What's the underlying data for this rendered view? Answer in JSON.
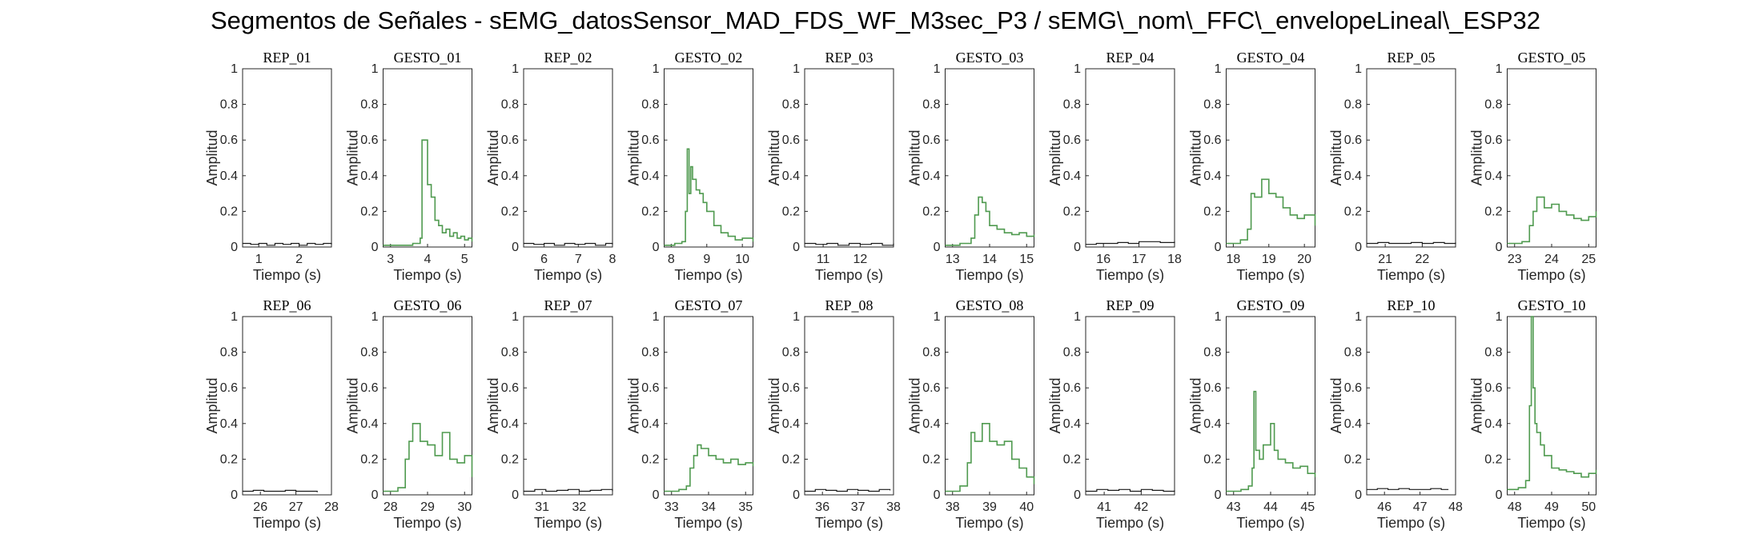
{
  "title": "Segmentos de Señales - sEMG_datosSensor_MAD_FDS_WF_M3sec_P3 / sEMG\\_nom\\_FFC\\_envelopeLineal\\_ESP32",
  "colors": {
    "rep": "#1a1a1a",
    "gesto": "#4f9a4f",
    "axis": "#262626"
  },
  "chart_data": [
    {
      "type": "line",
      "title": "REP_01",
      "xlabel": "Tiempo (s)",
      "ylabel": "Amplitud",
      "xlim": [
        0.6,
        2.8
      ],
      "ylim": [
        0,
        1
      ],
      "xticks": [
        1,
        2
      ],
      "yticks": [
        0,
        0.2,
        0.4,
        0.6,
        0.8,
        1
      ],
      "kind": "rep",
      "x": [
        0.6,
        0.8,
        1.0,
        1.2,
        1.4,
        1.6,
        1.8,
        2.0,
        2.2,
        2.4,
        2.6,
        2.8
      ],
      "y": [
        0.02,
        0.015,
        0.02,
        0.01,
        0.02,
        0.015,
        0.02,
        0.01,
        0.02,
        0.015,
        0.02,
        0.015
      ]
    },
    {
      "type": "line",
      "title": "GESTO_01",
      "xlabel": "Tiempo (s)",
      "ylabel": "Amplitud",
      "xlim": [
        2.8,
        5.2
      ],
      "ylim": [
        0,
        1
      ],
      "xticks": [
        3,
        4,
        5
      ],
      "yticks": [
        0,
        0.2,
        0.4,
        0.6,
        0.8,
        1
      ],
      "kind": "gesto",
      "x": [
        2.8,
        3.2,
        3.6,
        3.8,
        3.85,
        3.9,
        4.0,
        4.1,
        4.2,
        4.3,
        4.4,
        4.5,
        4.6,
        4.7,
        4.8,
        4.9,
        5.0,
        5.1,
        5.2
      ],
      "y": [
        0.01,
        0.01,
        0.02,
        0.05,
        0.6,
        0.6,
        0.35,
        0.28,
        0.15,
        0.12,
        0.08,
        0.1,
        0.06,
        0.08,
        0.05,
        0.06,
        0.04,
        0.05,
        0.03
      ]
    },
    {
      "type": "line",
      "title": "REP_02",
      "xlabel": "Tiempo (s)",
      "ylabel": "Amplitud",
      "xlim": [
        5.4,
        8.0
      ],
      "ylim": [
        0,
        1
      ],
      "xticks": [
        6,
        7,
        8
      ],
      "yticks": [
        0,
        0.2,
        0.4,
        0.6,
        0.8,
        1
      ],
      "kind": "rep",
      "x": [
        5.4,
        5.7,
        6.0,
        6.3,
        6.6,
        6.9,
        7.2,
        7.5,
        7.8,
        8.0
      ],
      "y": [
        0.02,
        0.015,
        0.02,
        0.01,
        0.02,
        0.015,
        0.02,
        0.01,
        0.02,
        0.015
      ]
    },
    {
      "type": "line",
      "title": "GESTO_02",
      "xlabel": "Tiempo (s)",
      "ylabel": "Amplitud",
      "xlim": [
        7.8,
        10.3
      ],
      "ylim": [
        0,
        1
      ],
      "xticks": [
        8,
        9,
        10
      ],
      "yticks": [
        0,
        0.2,
        0.4,
        0.6,
        0.8,
        1
      ],
      "kind": "gesto",
      "x": [
        7.8,
        8.1,
        8.3,
        8.4,
        8.45,
        8.5,
        8.55,
        8.6,
        8.7,
        8.8,
        8.9,
        9.0,
        9.2,
        9.4,
        9.6,
        9.8,
        10.0,
        10.3
      ],
      "y": [
        0.01,
        0.02,
        0.03,
        0.2,
        0.55,
        0.3,
        0.45,
        0.38,
        0.32,
        0.3,
        0.25,
        0.2,
        0.12,
        0.08,
        0.06,
        0.04,
        0.05,
        0.03
      ]
    },
    {
      "type": "line",
      "title": "REP_03",
      "xlabel": "Tiempo (s)",
      "ylabel": "Amplitud",
      "xlim": [
        10.5,
        12.9
      ],
      "ylim": [
        0,
        1
      ],
      "xticks": [
        11,
        12
      ],
      "yticks": [
        0,
        0.2,
        0.4,
        0.6,
        0.8,
        1
      ],
      "kind": "rep",
      "x": [
        10.5,
        10.8,
        11.1,
        11.4,
        11.7,
        12.0,
        12.3,
        12.6,
        12.9
      ],
      "y": [
        0.02,
        0.015,
        0.02,
        0.01,
        0.02,
        0.015,
        0.02,
        0.01,
        0.02
      ]
    },
    {
      "type": "line",
      "title": "GESTO_03",
      "xlabel": "Tiempo (s)",
      "ylabel": "Amplitud",
      "xlim": [
        12.8,
        15.2
      ],
      "ylim": [
        0,
        1
      ],
      "xticks": [
        13,
        14,
        15
      ],
      "yticks": [
        0,
        0.2,
        0.4,
        0.6,
        0.8,
        1
      ],
      "kind": "gesto",
      "x": [
        12.8,
        13.2,
        13.5,
        13.6,
        13.7,
        13.8,
        13.9,
        14.0,
        14.2,
        14.4,
        14.6,
        14.8,
        15.0,
        15.2
      ],
      "y": [
        0.01,
        0.02,
        0.05,
        0.18,
        0.28,
        0.25,
        0.2,
        0.12,
        0.1,
        0.08,
        0.07,
        0.08,
        0.06,
        0.07
      ]
    },
    {
      "type": "line",
      "title": "REP_04",
      "xlabel": "Tiempo (s)",
      "ylabel": "Amplitud",
      "xlim": [
        15.5,
        18.0
      ],
      "ylim": [
        0,
        1
      ],
      "xticks": [
        16,
        17,
        18
      ],
      "yticks": [
        0,
        0.2,
        0.4,
        0.6,
        0.8,
        1
      ],
      "kind": "rep",
      "x": [
        15.5,
        15.8,
        16.1,
        16.4,
        16.7,
        17.0,
        17.3,
        17.6,
        18.0
      ],
      "y": [
        0.015,
        0.02,
        0.02,
        0.025,
        0.02,
        0.03,
        0.03,
        0.025,
        0.03
      ]
    },
    {
      "type": "line",
      "title": "GESTO_04",
      "xlabel": "Tiempo (s)",
      "ylabel": "Amplitud",
      "xlim": [
        17.8,
        20.3
      ],
      "ylim": [
        0,
        1
      ],
      "xticks": [
        18,
        19,
        20
      ],
      "yticks": [
        0,
        0.2,
        0.4,
        0.6,
        0.8,
        1
      ],
      "kind": "gesto",
      "x": [
        17.8,
        18.2,
        18.4,
        18.5,
        18.6,
        18.8,
        19.0,
        19.2,
        19.4,
        19.6,
        19.8,
        20.0,
        20.3
      ],
      "y": [
        0.02,
        0.04,
        0.1,
        0.3,
        0.28,
        0.38,
        0.3,
        0.28,
        0.22,
        0.18,
        0.16,
        0.18,
        0.12
      ]
    },
    {
      "type": "line",
      "title": "REP_05",
      "xlabel": "Tiempo (s)",
      "ylabel": "Amplitud",
      "xlim": [
        20.5,
        22.9
      ],
      "ylim": [
        0,
        1
      ],
      "xticks": [
        21,
        22
      ],
      "yticks": [
        0,
        0.2,
        0.4,
        0.6,
        0.8,
        1
      ],
      "kind": "rep",
      "x": [
        20.5,
        20.8,
        21.1,
        21.4,
        21.7,
        22.0,
        22.3,
        22.6,
        22.9
      ],
      "y": [
        0.02,
        0.025,
        0.02,
        0.02,
        0.025,
        0.02,
        0.025,
        0.02,
        0.025
      ]
    },
    {
      "type": "line",
      "title": "GESTO_05",
      "xlabel": "Tiempo (s)",
      "ylabel": "Amplitud",
      "xlim": [
        22.8,
        25.2
      ],
      "ylim": [
        0,
        1
      ],
      "xticks": [
        23,
        24,
        25
      ],
      "yticks": [
        0,
        0.2,
        0.4,
        0.6,
        0.8,
        1
      ],
      "kind": "gesto",
      "x": [
        22.8,
        23.2,
        23.4,
        23.5,
        23.6,
        23.8,
        24.0,
        24.2,
        24.4,
        24.6,
        24.8,
        25.0,
        25.2
      ],
      "y": [
        0.02,
        0.03,
        0.12,
        0.2,
        0.28,
        0.22,
        0.24,
        0.2,
        0.18,
        0.16,
        0.15,
        0.17,
        0.2
      ]
    },
    {
      "type": "line",
      "title": "REP_06",
      "xlabel": "Tiempo (s)",
      "ylabel": "Amplitud",
      "xlim": [
        25.5,
        28.0
      ],
      "ylim": [
        0,
        1
      ],
      "xticks": [
        26,
        27,
        28
      ],
      "yticks": [
        0,
        0.2,
        0.4,
        0.6,
        0.8,
        1
      ],
      "kind": "rep",
      "x": [
        25.5,
        25.8,
        26.1,
        26.4,
        26.7,
        27.0,
        27.3,
        27.6
      ],
      "y": [
        0.02,
        0.025,
        0.02,
        0.02,
        0.025,
        0.02,
        0.02,
        0.015
      ]
    },
    {
      "type": "line",
      "title": "GESTO_06",
      "xlabel": "Tiempo (s)",
      "ylabel": "Amplitud",
      "xlim": [
        27.8,
        30.2
      ],
      "ylim": [
        0,
        1
      ],
      "xticks": [
        28,
        29,
        30
      ],
      "yticks": [
        0,
        0.2,
        0.4,
        0.6,
        0.8,
        1
      ],
      "kind": "gesto",
      "x": [
        27.8,
        28.2,
        28.4,
        28.5,
        28.6,
        28.8,
        29.0,
        29.2,
        29.4,
        29.6,
        29.8,
        30.0,
        30.2
      ],
      "y": [
        0.02,
        0.04,
        0.2,
        0.3,
        0.4,
        0.3,
        0.28,
        0.22,
        0.35,
        0.2,
        0.18,
        0.22,
        0.1
      ]
    },
    {
      "type": "line",
      "title": "REP_07",
      "xlabel": "Tiempo (s)",
      "ylabel": "Amplitud",
      "xlim": [
        30.5,
        32.9
      ],
      "ylim": [
        0,
        1
      ],
      "xticks": [
        31,
        32
      ],
      "yticks": [
        0,
        0.2,
        0.4,
        0.6,
        0.8,
        1
      ],
      "kind": "rep",
      "x": [
        30.5,
        30.8,
        31.1,
        31.4,
        31.7,
        32.0,
        32.3,
        32.6,
        32.9
      ],
      "y": [
        0.02,
        0.03,
        0.02,
        0.025,
        0.03,
        0.02,
        0.025,
        0.03,
        0.02
      ]
    },
    {
      "type": "line",
      "title": "GESTO_07",
      "xlabel": "Tiempo (s)",
      "ylabel": "Amplitud",
      "xlim": [
        32.8,
        35.2
      ],
      "ylim": [
        0,
        1
      ],
      "xticks": [
        33,
        34,
        35
      ],
      "yticks": [
        0,
        0.2,
        0.4,
        0.6,
        0.8,
        1
      ],
      "kind": "gesto",
      "x": [
        32.8,
        33.2,
        33.4,
        33.5,
        33.6,
        33.7,
        33.8,
        34.0,
        34.2,
        34.4,
        34.6,
        34.8,
        35.0,
        35.2
      ],
      "y": [
        0.02,
        0.03,
        0.05,
        0.15,
        0.22,
        0.28,
        0.26,
        0.22,
        0.2,
        0.18,
        0.2,
        0.17,
        0.18,
        0.16
      ]
    },
    {
      "type": "line",
      "title": "REP_08",
      "xlabel": "Tiempo (s)",
      "ylabel": "Amplitud",
      "xlim": [
        35.5,
        38.0
      ],
      "ylim": [
        0,
        1
      ],
      "xticks": [
        36,
        37,
        38
      ],
      "yticks": [
        0,
        0.2,
        0.4,
        0.6,
        0.8,
        1
      ],
      "kind": "rep",
      "x": [
        35.5,
        35.8,
        36.1,
        36.4,
        36.7,
        37.0,
        37.3,
        37.6,
        37.9
      ],
      "y": [
        0.02,
        0.03,
        0.025,
        0.02,
        0.03,
        0.025,
        0.02,
        0.03,
        0.025
      ]
    },
    {
      "type": "line",
      "title": "GESTO_08",
      "xlabel": "Tiempo (s)",
      "ylabel": "Amplitud",
      "xlim": [
        37.8,
        40.2
      ],
      "ylim": [
        0,
        1
      ],
      "xticks": [
        38,
        39,
        40
      ],
      "yticks": [
        0,
        0.2,
        0.4,
        0.6,
        0.8,
        1
      ],
      "kind": "gesto",
      "x": [
        37.8,
        38.2,
        38.4,
        38.5,
        38.6,
        38.8,
        39.0,
        39.2,
        39.4,
        39.6,
        39.8,
        40.0,
        40.2
      ],
      "y": [
        0.02,
        0.05,
        0.18,
        0.35,
        0.3,
        0.4,
        0.3,
        0.28,
        0.3,
        0.2,
        0.15,
        0.1,
        0.06
      ]
    },
    {
      "type": "line",
      "title": "REP_09",
      "xlabel": "Tiempo (s)",
      "ylabel": "Amplitud",
      "xlim": [
        40.5,
        42.9
      ],
      "ylim": [
        0,
        1
      ],
      "xticks": [
        41,
        42
      ],
      "yticks": [
        0,
        0.2,
        0.4,
        0.6,
        0.8,
        1
      ],
      "kind": "rep",
      "x": [
        40.5,
        40.8,
        41.1,
        41.4,
        41.7,
        42.0,
        42.3,
        42.6,
        42.9
      ],
      "y": [
        0.02,
        0.03,
        0.025,
        0.03,
        0.02,
        0.03,
        0.025,
        0.02,
        0.025
      ]
    },
    {
      "type": "line",
      "title": "GESTO_09",
      "xlabel": "Tiempo (s)",
      "ylabel": "Amplitud",
      "xlim": [
        42.8,
        45.2
      ],
      "ylim": [
        0,
        1
      ],
      "xticks": [
        43,
        44,
        45
      ],
      "yticks": [
        0,
        0.2,
        0.4,
        0.6,
        0.8,
        1
      ],
      "kind": "gesto",
      "x": [
        42.8,
        43.2,
        43.4,
        43.5,
        43.55,
        43.6,
        43.7,
        43.8,
        44.0,
        44.1,
        44.2,
        44.4,
        44.6,
        44.8,
        45.0,
        45.2
      ],
      "y": [
        0.02,
        0.03,
        0.05,
        0.15,
        0.58,
        0.25,
        0.2,
        0.28,
        0.4,
        0.25,
        0.2,
        0.18,
        0.15,
        0.16,
        0.12,
        0.1
      ]
    },
    {
      "type": "line",
      "title": "REP_10",
      "xlabel": "Tiempo (s)",
      "ylabel": "Amplitud",
      "xlim": [
        45.5,
        48.0
      ],
      "ylim": [
        0,
        1
      ],
      "xticks": [
        46,
        47,
        48
      ],
      "yticks": [
        0,
        0.2,
        0.4,
        0.6,
        0.8,
        1
      ],
      "kind": "rep",
      "x": [
        45.5,
        45.8,
        46.1,
        46.4,
        46.7,
        47.0,
        47.3,
        47.6,
        47.8
      ],
      "y": [
        0.03,
        0.035,
        0.03,
        0.035,
        0.03,
        0.03,
        0.035,
        0.03,
        0.03
      ]
    },
    {
      "type": "line",
      "title": "GESTO_10",
      "xlabel": "Tiempo (s)",
      "ylabel": "Amplitud",
      "xlim": [
        47.8,
        50.2
      ],
      "ylim": [
        0,
        1
      ],
      "xticks": [
        48,
        49,
        50
      ],
      "yticks": [
        0,
        0.2,
        0.4,
        0.6,
        0.8,
        1
      ],
      "kind": "gesto",
      "x": [
        47.8,
        48.1,
        48.3,
        48.4,
        48.45,
        48.5,
        48.55,
        48.6,
        48.7,
        48.8,
        49.0,
        49.2,
        49.4,
        49.6,
        49.8,
        50.0,
        50.2
      ],
      "y": [
        0.03,
        0.04,
        0.08,
        0.5,
        1.0,
        0.6,
        0.4,
        0.35,
        0.28,
        0.22,
        0.15,
        0.14,
        0.13,
        0.12,
        0.1,
        0.12,
        0.14
      ]
    }
  ]
}
